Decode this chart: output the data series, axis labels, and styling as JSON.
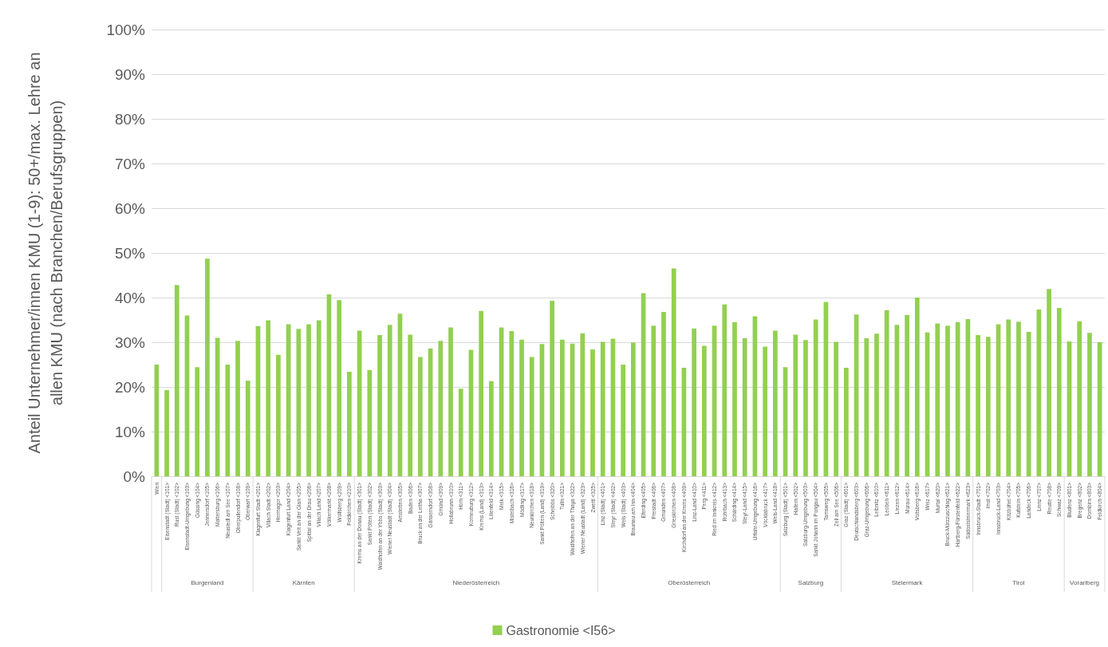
{
  "chart_data": {
    "type": "bar",
    "ylabel": "Anteil Unternehmer/innen KMU (1-9): 50+/max. Lehre an\nallen KMU (nach Branchen/Berufsgruppen)",
    "categories": [
      "Wien",
      "Eisenstadt (Stadt) <101>",
      "Rust (Stadt) <102>",
      "Eisenstadt-Umgebung <103>",
      "Güssing <104>",
      "Jennersdorf <105>",
      "Mattersburg <106>",
      "Neusiedl am See <107>",
      "Oberpullendorf <108>",
      "Oberwart <109>",
      "Klagenfurt Stadt <201>",
      "Villach Stadt <202>",
      "Hermagor <203>",
      "Klagenfurt Land <204>",
      "Sankt Veit an der Glan <205>",
      "Spittal an der Drau <206>",
      "Villach Land <207>",
      "Völkermarkt <208>",
      "Wolfsberg <209>",
      "Feldkirchen <210>",
      "Krems an der Donau (Stadt) <301>",
      "Sankt Pölten (Stadt) <302>",
      "Waidhofen an der Ybbs (Stadt) <303>",
      "Wiener Neustadt (Stadt) <304>",
      "Amstetten <305>",
      "Baden <306>",
      "Bruck an der Leitha <307>",
      "Gänserndorf <308>",
      "Gmünd <309>",
      "Hollabrunn <310>",
      "Horn <311>",
      "Korneuburg <312>",
      "Krems (Land) <313>",
      "Lilienfeld <314>",
      "Melk <315>",
      "Mistelbach <316>",
      "Mödling <317>",
      "Neunkirchen <318>",
      "Sankt Pölten (Land) <319>",
      "Scheibbs <320>",
      "Tulln <321>",
      "Waidhofen an der Thaya <322>",
      "Wiener Neustadt (Land) <323>",
      "Zwettl <325>",
      "Linz (Stadt) <401>",
      "Steyr (Stadt) <402>",
      "Wels (Stadt) <403>",
      "Braunau am Inn <404>",
      "Eferding <405>",
      "Freistadt <406>",
      "Gmunden <407>",
      "Grieskirchen <408>",
      "Kirchdorf an der Krems <409>",
      "Linz-Land <410>",
      "Perg <411>",
      "Ried im Innkreis <412>",
      "Rohrbach <413>",
      "Schärding <414>",
      "Steyr-Land <415>",
      "Urfahr-Umgebung <416>",
      "Vöcklabruck <417>",
      "Wels-Land <418>",
      "Salzburg (Stadt) <501>",
      "Hallein <502>",
      "Salzburg-Umgebung <503>",
      "Sankt Johann im Pongau <504>",
      "Tamsweg <505>",
      "Zell am See <506>",
      "Graz (Stadt) <601>",
      "Deutschlandsberg <603>",
      "Graz-Umgebung <606>",
      "Leibnitz <610>",
      "Leoben <611>",
      "Liezen <612>",
      "Murau <614>",
      "Voitsberg <616>",
      "Weiz <617>",
      "Murtal <620>",
      "Bruck-Mürzzuschlag <621>",
      "Hartberg-Fürstenfeld <622>",
      "Südoststeiermark <623>",
      "Innsbruck-Stadt <701>",
      "Imst <702>",
      "Innsbruck-Land <703>",
      "Kitzbühel <704>",
      "Kufstein <705>",
      "Landeck <706>",
      "Lienz <707>",
      "Reutte <708>",
      "Schwaz <709>",
      "Bludenz <801>",
      "Bregenz <802>",
      "Dornbirn <803>",
      "Feldkirch <804>"
    ],
    "series": [
      {
        "name": "Gastronomie <I56>",
        "color": "#92d050",
        "values": [
          25.0,
          19.3,
          42.8,
          36.0,
          24.4,
          48.7,
          31.0,
          25.0,
          30.3,
          21.4,
          33.6,
          34.9,
          27.2,
          34.0,
          33.0,
          34.0,
          34.9,
          40.7,
          39.4,
          23.4,
          32.6,
          23.8,
          31.6,
          33.9,
          36.4,
          31.7,
          26.7,
          28.6,
          30.3,
          33.3,
          19.6,
          28.3,
          37.0,
          21.3,
          33.3,
          32.5,
          30.6,
          26.7,
          29.6,
          39.3,
          30.6,
          29.7,
          32.0,
          28.4,
          30.1,
          30.8,
          25.0,
          29.9,
          41.0,
          33.7,
          36.8,
          46.5,
          24.3,
          33.1,
          29.2,
          33.7,
          38.5,
          34.5,
          30.9,
          35.8,
          29.0,
          32.6,
          24.4,
          31.7,
          30.5,
          35.1,
          39.0,
          30.1,
          24.3,
          36.2,
          30.9,
          31.9,
          37.2,
          33.9,
          36.1,
          40.0,
          32.2,
          34.2,
          33.7,
          34.5,
          35.2,
          31.6,
          31.2,
          34.0,
          35.1,
          34.6,
          32.3,
          37.3,
          41.9,
          37.7,
          30.2,
          34.7,
          32.1,
          30.0
        ]
      }
    ],
    "ylim": [
      0,
      100
    ],
    "yticks": [
      {
        "value": 0,
        "label": "0%"
      },
      {
        "value": 10,
        "label": "10%"
      },
      {
        "value": 20,
        "label": "20%"
      },
      {
        "value": 30,
        "label": "30%"
      },
      {
        "value": 40,
        "label": "40%"
      },
      {
        "value": 50,
        "label": "50%"
      },
      {
        "value": 60,
        "label": "60%"
      },
      {
        "value": 70,
        "label": "70%"
      },
      {
        "value": 80,
        "label": "80%"
      },
      {
        "value": 90,
        "label": "90%"
      },
      {
        "value": 100,
        "label": "100%"
      }
    ],
    "annotations": [
      "Burgenland",
      "Kärnten",
      "Niederösterreich",
      "Oberösterreich",
      "Salzburg",
      "Steiermark",
      "Tirol",
      "Vorarlberg"
    ],
    "grid": "y",
    "legend": "bottom"
  }
}
